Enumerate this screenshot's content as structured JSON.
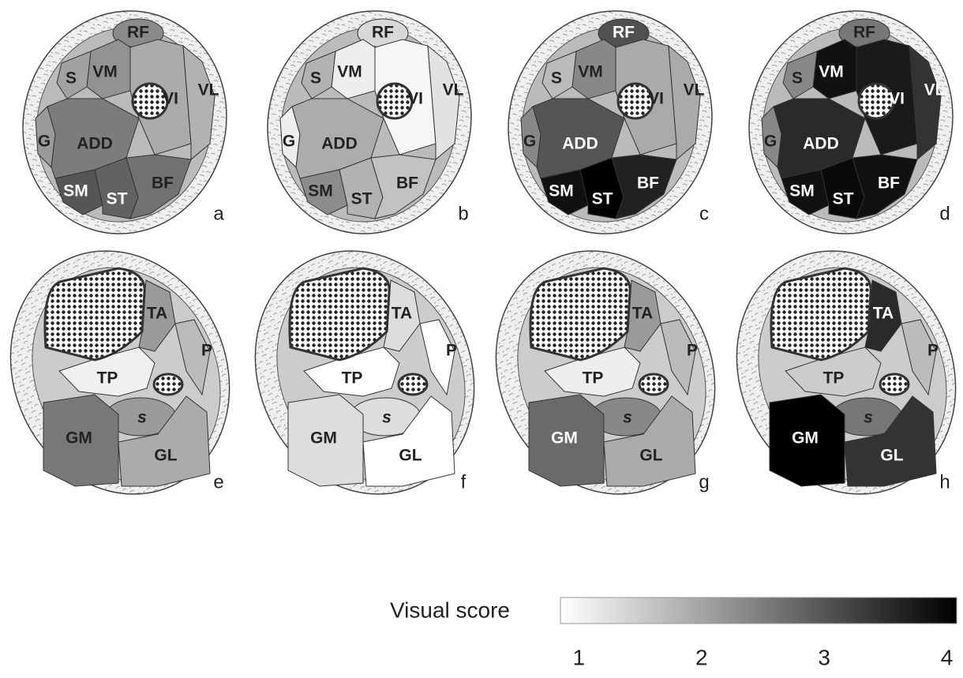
{
  "thigh_panels": [
    {
      "letter": "a",
      "muscles": [
        {
          "label": "RF",
          "fill": "#8a8a8a"
        },
        {
          "label": "VM",
          "fill": "#929292"
        },
        {
          "label": "S",
          "fill": "#a2a2a2"
        },
        {
          "label": "VI",
          "fill": "#ababab"
        },
        {
          "label": "VL",
          "fill": "#b2b2b2"
        },
        {
          "label": "G",
          "fill": "#9a9a9a"
        },
        {
          "label": "ADD",
          "fill": "#7c7c7c"
        },
        {
          "label": "SM",
          "fill": "#565656"
        },
        {
          "label": "ST",
          "fill": "#626262"
        },
        {
          "label": "BF",
          "fill": "#727272"
        }
      ]
    },
    {
      "letter": "b",
      "muscles": [
        {
          "label": "RF",
          "fill": "#d8d8d8"
        },
        {
          "label": "VM",
          "fill": "#eeeeee"
        },
        {
          "label": "S",
          "fill": "#b2b2b2"
        },
        {
          "label": "VI",
          "fill": "#f6f6f6"
        },
        {
          "label": "VL",
          "fill": "#e2e2e2"
        },
        {
          "label": "G",
          "fill": "#eeeeee"
        },
        {
          "label": "ADD",
          "fill": "#acacac"
        },
        {
          "label": "SM",
          "fill": "#8c8c8c"
        },
        {
          "label": "ST",
          "fill": "#b2b2b2"
        },
        {
          "label": "BF",
          "fill": "#c2c2c2"
        }
      ]
    },
    {
      "letter": "c",
      "muscles": [
        {
          "label": "RF",
          "fill": "#505050"
        },
        {
          "label": "VM",
          "fill": "#888888"
        },
        {
          "label": "S",
          "fill": "#bbbbbb"
        },
        {
          "label": "VI",
          "fill": "#aaaaaa"
        },
        {
          "label": "VL",
          "fill": "#aaaaaa"
        },
        {
          "label": "G",
          "fill": "#888888"
        },
        {
          "label": "ADD",
          "fill": "#555555"
        },
        {
          "label": "SM",
          "fill": "#111111"
        },
        {
          "label": "ST",
          "fill": "#000000"
        },
        {
          "label": "BF",
          "fill": "#222222"
        }
      ]
    },
    {
      "letter": "d",
      "muscles": [
        {
          "label": "RF",
          "fill": "#777777"
        },
        {
          "label": "VM",
          "fill": "#111111"
        },
        {
          "label": "S",
          "fill": "#888888"
        },
        {
          "label": "VI",
          "fill": "#1a1a1a"
        },
        {
          "label": "VL",
          "fill": "#333333"
        },
        {
          "label": "G",
          "fill": "#888888"
        },
        {
          "label": "ADD",
          "fill": "#2a2a2a"
        },
        {
          "label": "SM",
          "fill": "#111111"
        },
        {
          "label": "ST",
          "fill": "#0a0a0a"
        },
        {
          "label": "BF",
          "fill": "#111111"
        }
      ]
    }
  ],
  "calf_panels": [
    {
      "letter": "e",
      "muscles": [
        {
          "label": "TA",
          "fill": "#9a9a9a"
        },
        {
          "label": "P",
          "fill": "#bbbbbb"
        },
        {
          "label": "TP",
          "fill": "#f0f0f0"
        },
        {
          "label": "s",
          "fill": "#9a9a9a"
        },
        {
          "label": "GM",
          "fill": "#787878"
        },
        {
          "label": "GL",
          "fill": "#ababab"
        }
      ]
    },
    {
      "letter": "f",
      "muscles": [
        {
          "label": "TA",
          "fill": "#dddddd"
        },
        {
          "label": "P",
          "fill": "#ffffff"
        },
        {
          "label": "TP",
          "fill": "#ffffff"
        },
        {
          "label": "s",
          "fill": "#dddddd"
        },
        {
          "label": "GM",
          "fill": "#dddddd"
        },
        {
          "label": "GL",
          "fill": "#ffffff"
        }
      ]
    },
    {
      "letter": "g",
      "muscles": [
        {
          "label": "TA",
          "fill": "#9a9a9a"
        },
        {
          "label": "P",
          "fill": "#bbbbbb"
        },
        {
          "label": "TP",
          "fill": "#eeeeee"
        },
        {
          "label": "s",
          "fill": "#888888"
        },
        {
          "label": "GM",
          "fill": "#6a6a6a"
        },
        {
          "label": "GL",
          "fill": "#ababab"
        }
      ]
    },
    {
      "letter": "h",
      "muscles": [
        {
          "label": "TA",
          "fill": "#2a2a2a"
        },
        {
          "label": "P",
          "fill": "#bbbbbb"
        },
        {
          "label": "TP",
          "fill": "#cccccc"
        },
        {
          "label": "s",
          "fill": "#777777"
        },
        {
          "label": "GM",
          "fill": "#000000"
        },
        {
          "label": "GL",
          "fill": "#333333"
        }
      ]
    }
  ],
  "colorbar": {
    "label": "Visual score",
    "lim": [
      0.85,
      4.08
    ],
    "ticks": [
      1,
      2,
      3,
      4
    ]
  }
}
